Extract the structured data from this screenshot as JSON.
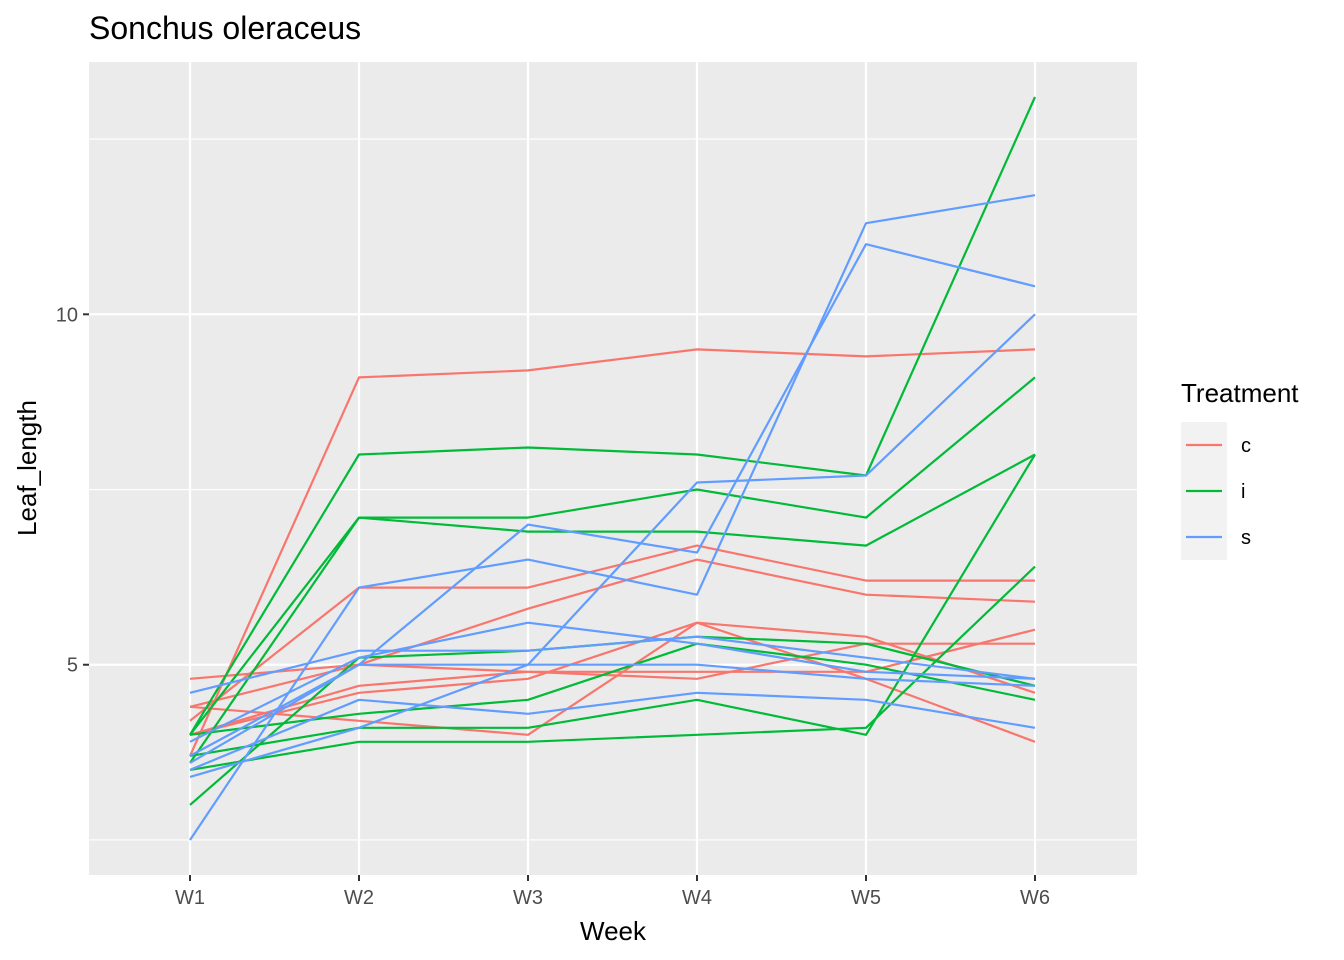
{
  "chart_data": {
    "type": "line",
    "title": "Sonchus oleraceus",
    "xlabel": "Week",
    "ylabel": "Leaf_length",
    "categories": [
      "W1",
      "W2",
      "W3",
      "W4",
      "W5",
      "W6"
    ],
    "ylim": [
      2.0,
      13.6
    ],
    "yticks": [
      5,
      10
    ],
    "grid": true,
    "legend": {
      "title": "Treatment",
      "placement": "right",
      "entries": [
        {
          "key": "c",
          "label": "c",
          "color": "#F8766D"
        },
        {
          "key": "i",
          "label": "i",
          "color": "#00BA38"
        },
        {
          "key": "s",
          "label": "s",
          "color": "#619CFF"
        }
      ]
    },
    "series": [
      {
        "name": "c-1",
        "treatment": "c",
        "values": [
          3.7,
          9.1,
          9.2,
          9.5,
          9.4,
          9.5
        ]
      },
      {
        "name": "c-2",
        "treatment": "c",
        "values": [
          4.2,
          6.1,
          6.1,
          6.7,
          6.2,
          6.2
        ]
      },
      {
        "name": "c-3",
        "treatment": "c",
        "values": [
          4.4,
          5.0,
          5.8,
          6.5,
          6.0,
          5.9
        ]
      },
      {
        "name": "c-4",
        "treatment": "c",
        "values": [
          4.8,
          5.0,
          4.9,
          4.8,
          5.3,
          5.3
        ]
      },
      {
        "name": "c-5",
        "treatment": "c",
        "values": [
          4.0,
          4.6,
          4.8,
          5.6,
          5.4,
          4.6
        ]
      },
      {
        "name": "c-6",
        "treatment": "c",
        "values": [
          4.4,
          4.2,
          4.0,
          5.6,
          4.8,
          3.9
        ]
      },
      {
        "name": "c-7",
        "treatment": "c",
        "values": [
          4.0,
          4.7,
          4.9,
          4.9,
          4.9,
          5.5
        ]
      },
      {
        "name": "i-1",
        "treatment": "i",
        "values": [
          4.0,
          8.0,
          8.1,
          8.0,
          7.7,
          13.1
        ]
      },
      {
        "name": "i-2",
        "treatment": "i",
        "values": [
          4.0,
          7.1,
          7.1,
          7.5,
          7.1,
          9.1
        ]
      },
      {
        "name": "i-3",
        "treatment": "i",
        "values": [
          3.6,
          7.1,
          6.9,
          6.9,
          6.7,
          8.0
        ]
      },
      {
        "name": "i-4",
        "treatment": "i",
        "values": [
          3.5,
          3.9,
          3.9,
          4.0,
          4.1,
          6.4
        ]
      },
      {
        "name": "i-5",
        "treatment": "i",
        "values": [
          3.0,
          5.1,
          5.2,
          5.4,
          5.3,
          4.7
        ]
      },
      {
        "name": "i-6",
        "treatment": "i",
        "values": [
          4.0,
          4.3,
          4.5,
          5.3,
          5.0,
          4.5
        ]
      },
      {
        "name": "i-7",
        "treatment": "i",
        "values": [
          3.7,
          4.1,
          4.1,
          4.5,
          4.0,
          8.0
        ]
      },
      {
        "name": "s-1",
        "treatment": "s",
        "values": [
          2.5,
          6.1,
          6.5,
          6.0,
          11.3,
          11.7
        ]
      },
      {
        "name": "s-2",
        "treatment": "s",
        "values": [
          3.6,
          5.0,
          7.0,
          6.6,
          11.0,
          10.4
        ]
      },
      {
        "name": "s-3",
        "treatment": "s",
        "values": [
          3.4,
          4.1,
          5.0,
          7.6,
          7.7,
          10.0
        ]
      },
      {
        "name": "s-4",
        "treatment": "s",
        "values": [
          4.6,
          5.2,
          5.2,
          5.4,
          5.1,
          4.8
        ]
      },
      {
        "name": "s-5",
        "treatment": "s",
        "values": [
          3.9,
          5.1,
          5.6,
          5.3,
          4.9,
          4.8
        ]
      },
      {
        "name": "s-6",
        "treatment": "s",
        "values": [
          3.7,
          5.0,
          5.0,
          5.0,
          4.8,
          4.7
        ]
      },
      {
        "name": "s-7",
        "treatment": "s",
        "values": [
          3.5,
          4.5,
          4.3,
          4.6,
          4.5,
          4.1
        ]
      }
    ]
  }
}
